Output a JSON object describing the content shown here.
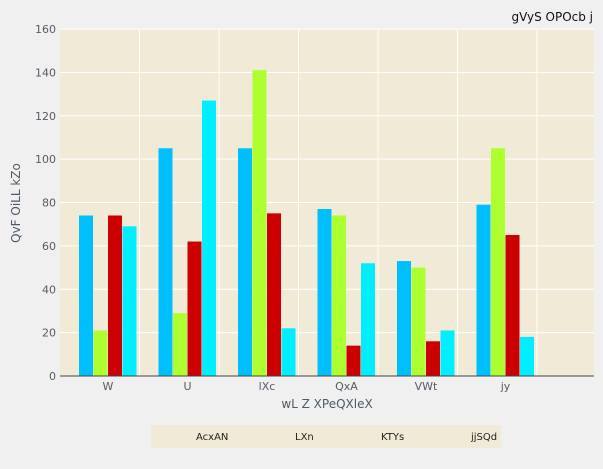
{
  "chart_data": {
    "type": "bar",
    "title": "gVyS OPOcb j",
    "xlabel": "wL Z XPeQXleX",
    "ylabel": "QvF OiLL kZo",
    "ylim": [
      0,
      160
    ],
    "yticks": [
      0,
      20,
      40,
      60,
      80,
      100,
      120,
      140,
      160
    ],
    "grid": true,
    "legend_position": "bottom",
    "categories": [
      "W",
      "U",
      "lXc",
      "QxA",
      "VWt",
      "jy"
    ],
    "series": [
      {
        "name": "AcxAN",
        "color": "#00bfff",
        "values": [
          74,
          105,
          105,
          77,
          53,
          79
        ]
      },
      {
        "name": "LXn",
        "color": "#adff2f",
        "values": [
          21,
          29,
          141,
          74,
          50,
          105
        ]
      },
      {
        "name": "KTYs",
        "color": "#cc0000",
        "values": [
          74,
          62,
          75,
          14,
          16,
          65
        ]
      },
      {
        "name": "jjSQd",
        "color": "#00eeff",
        "values": [
          69,
          127,
          22,
          52,
          21,
          18
        ]
      }
    ]
  }
}
